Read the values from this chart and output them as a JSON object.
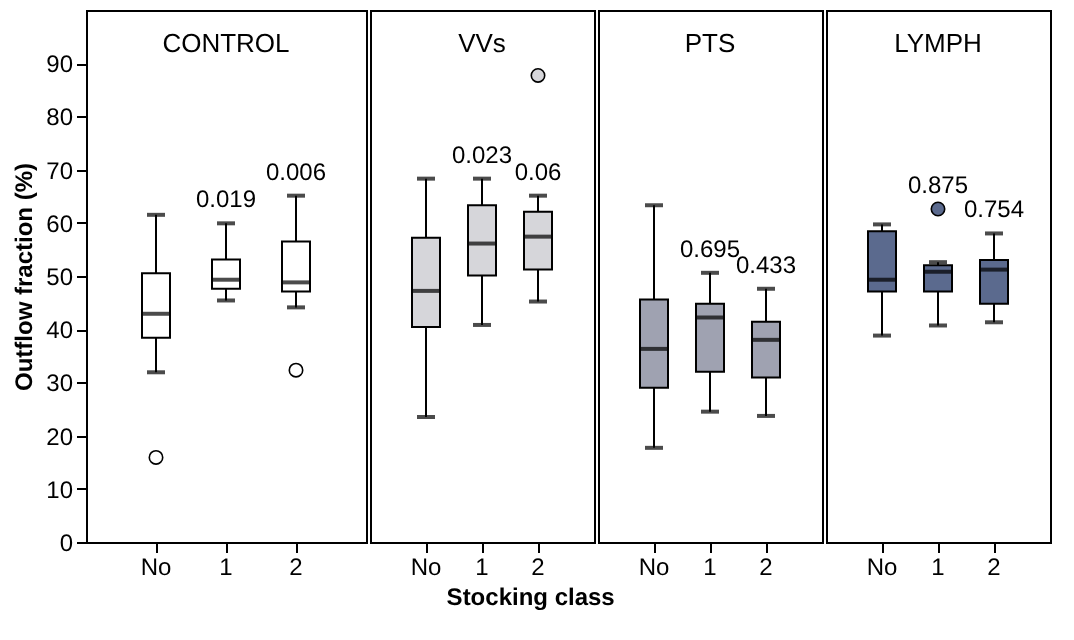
{
  "chart_data": [
    {
      "type": "box",
      "title": "CONTROL",
      "ylabel": "Outflow fraction (%)",
      "xlabel": "Stocking class",
      "categories": [
        "No",
        "1",
        "2"
      ],
      "color": "#ffffff",
      "ylim": [
        0,
        100
      ],
      "yticks": [
        0,
        10,
        20,
        30,
        40,
        50,
        60,
        70,
        80,
        90
      ],
      "grid": false,
      "boxes": [
        {
          "low": 31.9,
          "q1": 38.4,
          "median": 42.9,
          "q3": 50.5,
          "high": 61.5,
          "outliers": [
            15.9
          ]
        },
        {
          "low": 45.4,
          "q1": 47.6,
          "median": 49.3,
          "q3": 53.1,
          "high": 59.9
        },
        {
          "low": 44.1,
          "q1": 47.1,
          "median": 48.8,
          "q3": 56.5,
          "high": 65.1,
          "outliers": [
            32.3
          ]
        }
      ],
      "annotations": [
        "0.019",
        "0.006"
      ]
    },
    {
      "type": "box",
      "title": "VVs",
      "categories": [
        "No",
        "1",
        "2"
      ],
      "color": "#d6d6da",
      "ylim": [
        0,
        100
      ],
      "grid": false,
      "tick_labels": "x",
      "boxes": [
        {
          "low": 23.5,
          "q1": 40.4,
          "median": 47.2,
          "q3": 57.2,
          "high": 68.3
        },
        {
          "low": 40.8,
          "q1": 50.1,
          "median": 56.1,
          "q3": 63.3,
          "high": 68.3
        },
        {
          "low": 45.2,
          "q1": 51.2,
          "median": 57.4,
          "q3": 62.1,
          "high": 65.1,
          "outliers": [
            87.7
          ]
        }
      ],
      "annotations": [
        "0.023",
        "0.06"
      ]
    },
    {
      "type": "box",
      "title": "PTS",
      "categories": [
        "No",
        "1",
        "2"
      ],
      "color": "#9fa2b1",
      "ylim": [
        0,
        100
      ],
      "grid": false,
      "tick_labels": "x",
      "boxes": [
        {
          "low": 17.7,
          "q1": 29.0,
          "median": 36.3,
          "q3": 45.6,
          "high": 63.3
        },
        {
          "low": 24.5,
          "q1": 32.0,
          "median": 42.2,
          "q3": 44.8,
          "high": 50.6
        },
        {
          "low": 23.7,
          "q1": 30.9,
          "median": 38.0,
          "q3": 41.4,
          "high": 47.6
        }
      ],
      "annotations": [
        "0.695",
        "0.433"
      ]
    },
    {
      "type": "box",
      "title": "LYMPH",
      "categories": [
        "No",
        "1",
        "2"
      ],
      "color": "#5b6a8e",
      "ylim": [
        0,
        100
      ],
      "grid": false,
      "tick_labels": "x",
      "boxes": [
        {
          "low": 38.8,
          "q1": 47.1,
          "median": 49.3,
          "q3": 58.4,
          "high": 59.7
        },
        {
          "low": 40.7,
          "q1": 47.1,
          "median": 50.8,
          "q3": 52.0,
          "high": 52.6,
          "outliers": [
            62.6
          ]
        },
        {
          "low": 41.3,
          "q1": 44.8,
          "median": 51.2,
          "q3": 53.0,
          "high": 58.0
        }
      ],
      "annotations": [
        "0.875",
        "0.754"
      ]
    }
  ]
}
